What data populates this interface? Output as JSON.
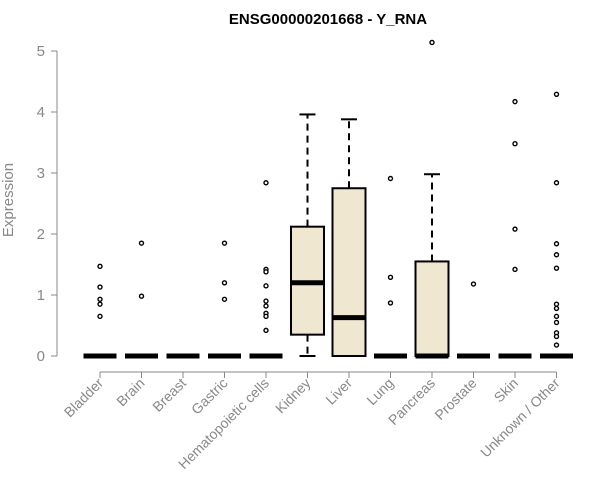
{
  "chart_data": {
    "type": "box",
    "title": "ENSG00000201668 - Y_RNA",
    "xlabel": "",
    "ylabel": "Expression",
    "ylim": [
      0,
      5.15
    ],
    "yticks": [
      0,
      1,
      2,
      3,
      4,
      5
    ],
    "grid": false,
    "legend": "none",
    "box_fill": "#efe7cf",
    "categories": [
      "Bladder",
      "Brain",
      "Breast",
      "Gastric",
      "Hematopoietic cells",
      "Kidney",
      "Liver",
      "Lung",
      "Pancreas",
      "Prostate",
      "Skin",
      "Unknown / Other"
    ],
    "boxes": [
      {
        "category": "Bladder",
        "q1": 0,
        "median": 0,
        "q3": 0,
        "whisker_low": 0,
        "whisker_high": 0,
        "outliers": [
          1.47,
          1.13,
          0.93,
          0.85,
          0.65
        ]
      },
      {
        "category": "Brain",
        "q1": 0,
        "median": 0,
        "q3": 0,
        "whisker_low": 0,
        "whisker_high": 0,
        "outliers": [
          1.85,
          0.98
        ]
      },
      {
        "category": "Breast",
        "q1": 0,
        "median": 0,
        "q3": 0,
        "whisker_low": 0,
        "whisker_high": 0,
        "outliers": []
      },
      {
        "category": "Gastric",
        "q1": 0,
        "median": 0,
        "q3": 0,
        "whisker_low": 0,
        "whisker_high": 0,
        "outliers": [
          1.85,
          1.2,
          0.93
        ]
      },
      {
        "category": "Hematopoietic cells",
        "q1": 0,
        "median": 0,
        "q3": 0,
        "whisker_low": 0,
        "whisker_high": 0,
        "outliers": [
          2.84,
          1.42,
          1.38,
          1.15,
          0.9,
          0.82,
          0.7,
          0.65,
          0.42
        ]
      },
      {
        "category": "Kidney",
        "q1": 0.35,
        "median": 1.2,
        "q3": 2.12,
        "whisker_low": 0,
        "whisker_high": 3.96,
        "outliers": []
      },
      {
        "category": "Liver",
        "q1": 0,
        "median": 0.63,
        "q3": 2.75,
        "whisker_low": 0,
        "whisker_high": 3.88,
        "outliers": []
      },
      {
        "category": "Lung",
        "q1": 0,
        "median": 0,
        "q3": 0,
        "whisker_low": 0,
        "whisker_high": 0,
        "outliers": [
          2.91,
          1.29,
          0.87
        ]
      },
      {
        "category": "Pancreas",
        "q1": 0,
        "median": 0,
        "q3": 1.55,
        "whisker_low": 0,
        "whisker_high": 2.98,
        "outliers": [
          5.14
        ]
      },
      {
        "category": "Prostate",
        "q1": 0,
        "median": 0,
        "q3": 0,
        "whisker_low": 0,
        "whisker_high": 0,
        "outliers": [
          1.18
        ]
      },
      {
        "category": "Skin",
        "q1": 0,
        "median": 0,
        "q3": 0,
        "whisker_low": 0,
        "whisker_high": 0,
        "outliers": [
          4.17,
          3.48,
          2.08,
          1.42
        ]
      },
      {
        "category": "Unknown / Other",
        "q1": 0,
        "median": 0,
        "q3": 0,
        "whisker_low": 0,
        "whisker_high": 0,
        "outliers": [
          4.29,
          2.84,
          1.84,
          1.66,
          1.44,
          0.85,
          0.78,
          0.65,
          0.55,
          0.38,
          0.32,
          0.18
        ]
      }
    ]
  }
}
